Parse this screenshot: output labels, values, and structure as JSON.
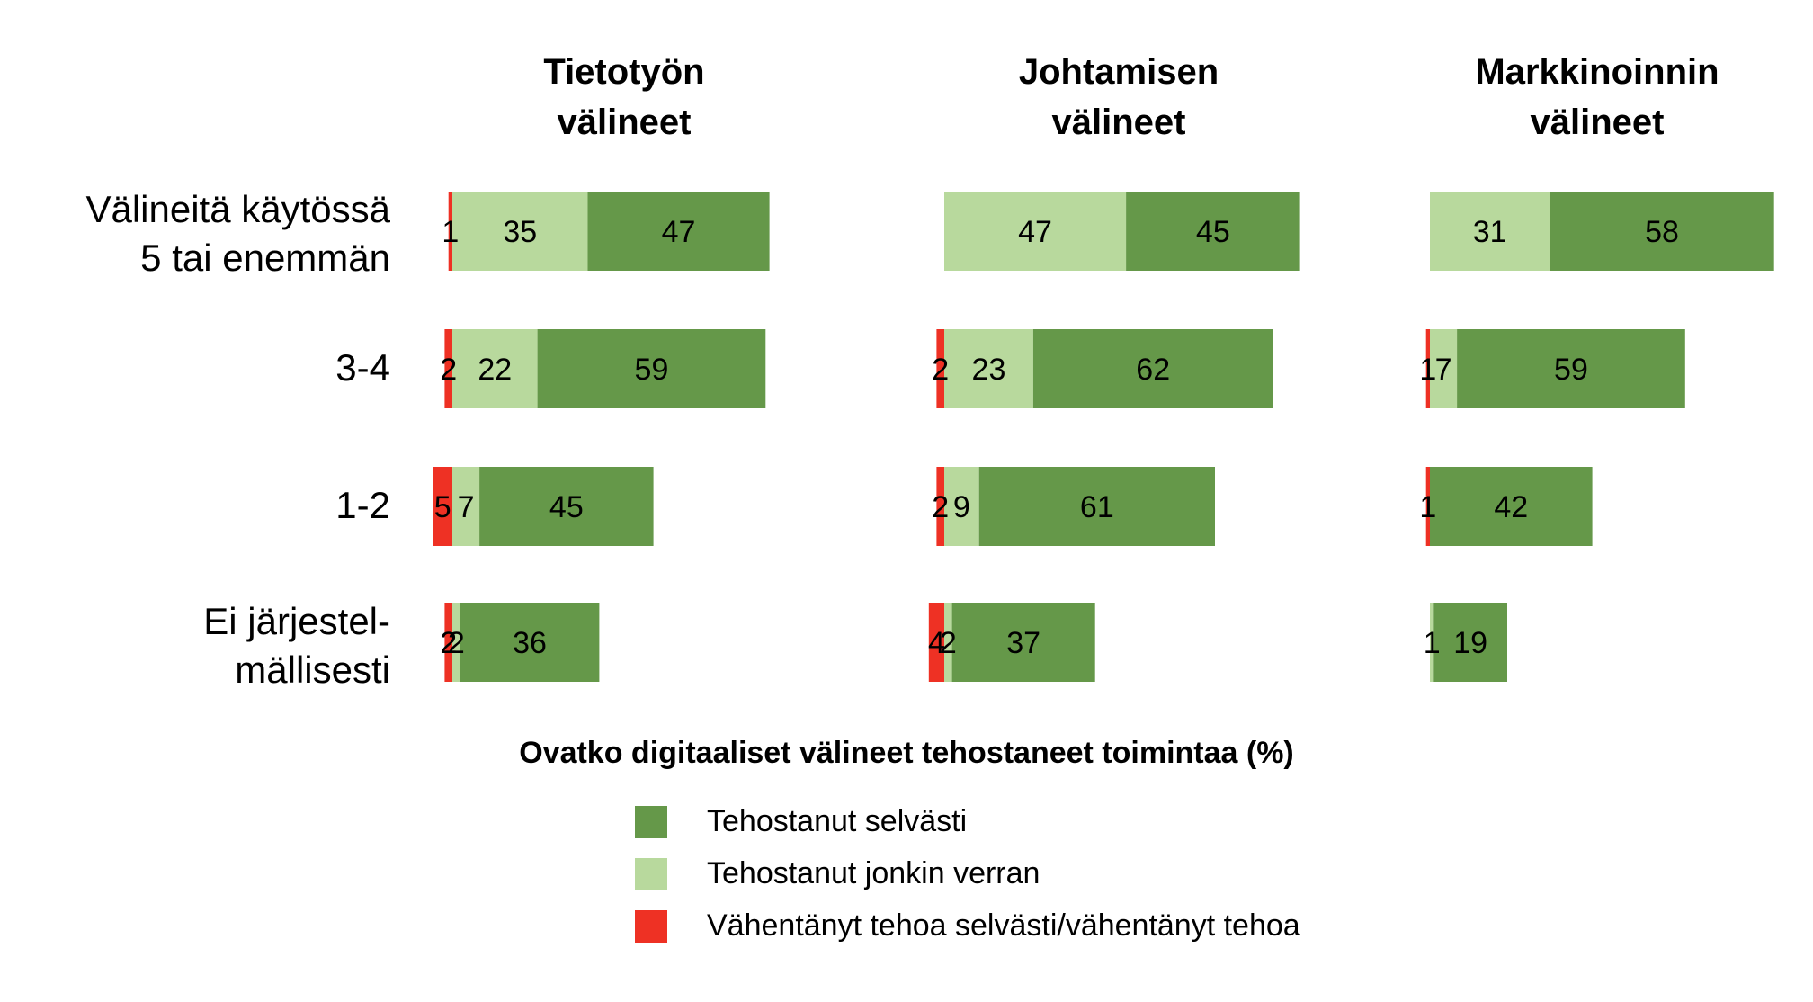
{
  "chart_data": {
    "type": "bar",
    "orientation": "horizontal",
    "stacked": true,
    "panels": [
      {
        "title": "Tietotyön\nvälineet"
      },
      {
        "title": "Johtamisen\nvälineet"
      },
      {
        "title": "Markkinoinnin\nvälineet"
      }
    ],
    "categories": [
      "Välineitä käytössä\n5 tai enemmän",
      "3-4",
      "1-2",
      "Ei järjestel-\nmällisesti"
    ],
    "series": [
      {
        "name": "Vähentänyt tehoa selvästi/vähentänyt tehoa",
        "color": "#ee3124",
        "values": [
          [
            1,
            2,
            5,
            2
          ],
          [
            0,
            2,
            2,
            4
          ],
          [
            0,
            1,
            1,
            0
          ]
        ],
        "labels": [
          [
            "1",
            "2",
            "5",
            "2"
          ],
          [
            "",
            "2",
            "2",
            "4"
          ],
          [
            "",
            "1",
            "1",
            ""
          ]
        ]
      },
      {
        "name": "Tehostanut jonkin verran",
        "color": "#b8d99d",
        "values": [
          [
            35,
            22,
            7,
            2
          ],
          [
            47,
            23,
            9,
            2
          ],
          [
            31,
            7,
            0,
            1
          ]
        ],
        "labels": [
          [
            "35",
            "22",
            "7",
            "2"
          ],
          [
            "47",
            "23",
            "9",
            "2"
          ],
          [
            "31",
            "7",
            "",
            "1"
          ]
        ]
      },
      {
        "name": "Tehostanut selvästi",
        "color": "#659849",
        "values": [
          [
            47,
            59,
            45,
            36
          ],
          [
            45,
            62,
            61,
            37
          ],
          [
            58,
            59,
            42,
            19
          ]
        ],
        "labels": [
          [
            "47",
            "59",
            "45",
            "36"
          ],
          [
            "45",
            "62",
            "61",
            "37"
          ],
          [
            "58",
            "59",
            "42",
            "19"
          ]
        ]
      }
    ],
    "legend_title": "Ovatko digitaaliset välineet tehostaneet toimintaa (%)",
    "legend_order": [
      2,
      1,
      0
    ],
    "legend_position": "bottom-center",
    "grid": false
  }
}
